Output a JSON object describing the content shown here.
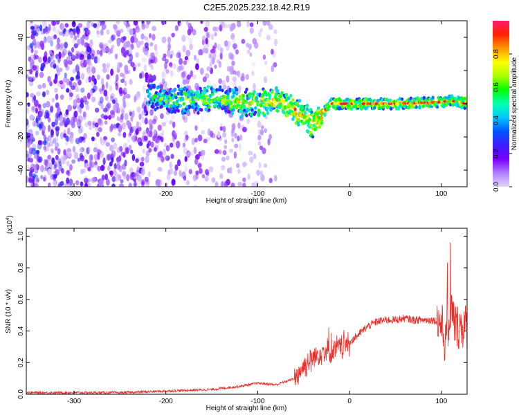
{
  "figure_title": "C2E5.2025.232.18.42.R19",
  "chart_data": [
    {
      "type": "heatmap",
      "title": "C2E5.2025.232.18.42.R19",
      "xlabel": "Height of straight line (km)",
      "ylabel": "Frequency (Hz)",
      "xlim": [
        -352,
        128
      ],
      "ylim": [
        -50,
        50
      ],
      "x_ticks": [
        -300,
        -200,
        -100,
        0,
        100
      ],
      "y_ticks": [
        -40,
        -20,
        0,
        20,
        40
      ],
      "x_tick_labels": [
        "-300",
        "-200",
        "-100",
        "0",
        "100"
      ],
      "y_tick_labels": [
        "-40",
        "-20",
        "0",
        "20",
        "40"
      ],
      "colorbar": {
        "label": "Normalized spectral amplitude",
        "range": [
          0,
          1
        ],
        "ticks": [
          0.0,
          0.2,
          0.4,
          0.6,
          0.8
        ],
        "tick_labels": [
          "0.0",
          "0.2",
          "0.4",
          "0.6",
          "0.8"
        ],
        "colormap": [
          "#e0d6ff",
          "#b07cff",
          "#7a00ff",
          "#3f1dff",
          "#0055ff",
          "#00c8ff",
          "#00ffb0",
          "#00ff00",
          "#aaff00",
          "#ffff00",
          "#ff9900",
          "#ff2200",
          "#ff1a6e"
        ]
      },
      "features": {
        "noise_region_x": [
          -352,
          -80
        ],
        "ridge_start_x": -220,
        "ridge_center_hz": [
          [
            -220,
            5
          ],
          [
            -200,
            2
          ],
          [
            -150,
            3
          ],
          [
            -120,
            1
          ],
          [
            -100,
            0
          ],
          [
            -80,
            2
          ],
          [
            -60,
            -3
          ],
          [
            -40,
            -12
          ],
          [
            -20,
            0
          ],
          [
            0,
            0
          ],
          [
            50,
            0
          ],
          [
            100,
            1
          ],
          [
            110,
            2
          ],
          [
            128,
            0
          ]
        ]
      }
    },
    {
      "type": "line",
      "xlabel": "Height of straight line (km)",
      "ylabel": "SNR (10 * v/v)",
      "y_multiplier_label": "(x10",
      "y_multiplier_exp": "4",
      "xlim": [
        -352,
        128
      ],
      "ylim": [
        0,
        1.05
      ],
      "x_ticks": [
        -300,
        -200,
        -100,
        0,
        100
      ],
      "y_ticks": [
        0.0,
        0.2,
        0.4,
        0.6,
        0.8,
        1.0
      ],
      "x_tick_labels": [
        "-300",
        "-200",
        "-100",
        "0",
        "100"
      ],
      "y_tick_labels": [
        "0.0",
        "0.2",
        "0.4",
        "0.6",
        "0.8",
        "1.0"
      ],
      "series": [
        {
          "color": "#e8302a",
          "x": [
            -352,
            -300,
            -250,
            -200,
            -150,
            -120,
            -100,
            -80,
            -60,
            -50,
            -40,
            -30,
            -20,
            -10,
            0,
            10,
            20,
            30,
            40,
            50,
            60,
            70,
            80,
            90,
            100,
            105,
            110,
            115,
            128
          ],
          "y": [
            0.01,
            0.01,
            0.01,
            0.02,
            0.03,
            0.05,
            0.07,
            0.06,
            0.1,
            0.18,
            0.22,
            0.28,
            0.26,
            0.3,
            0.33,
            0.38,
            0.43,
            0.46,
            0.47,
            0.47,
            0.48,
            0.47,
            0.47,
            0.47,
            0.45,
            0.3,
            0.55,
            0.43,
            0.43
          ]
        }
      ]
    }
  ]
}
